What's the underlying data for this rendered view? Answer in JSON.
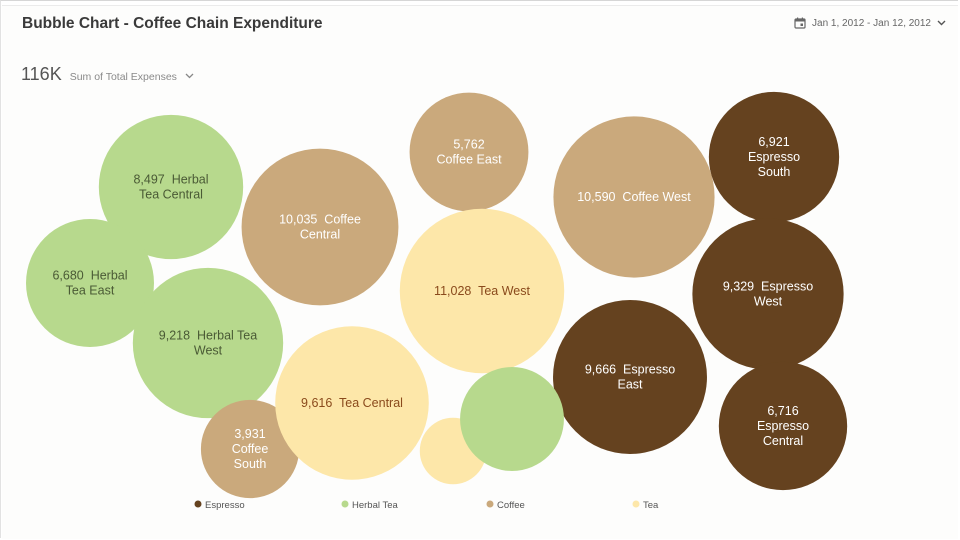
{
  "header": {
    "title": "Bubble Chart - Coffee Chain Expenditure",
    "date_range": "Jan 1, 2012 - Jan 12, 2012",
    "metric_value": "116K",
    "metric_label": "Sum of Total Expenses"
  },
  "colors": {
    "Espresso": "#65421f",
    "Herbal Tea": "#b7d98d",
    "Coffee": "#caa97c",
    "Tea": "#fde7a9"
  },
  "chart_data": {
    "type": "bubble",
    "title": "Bubble Chart - Coffee Chain Expenditure",
    "measure": "Sum of Total Expenses",
    "total": "116K",
    "legend": [
      "Espresso",
      "Herbal Tea",
      "Coffee",
      "Tea"
    ],
    "legend_position": "bottom",
    "bubbles": [
      {
        "value": 8497,
        "product": "Herbal Tea",
        "region": "Central",
        "label_lines": [
          "8,497  Herbal",
          "Tea Central"
        ]
      },
      {
        "value": 6680,
        "product": "Herbal Tea",
        "region": "East",
        "label_lines": [
          "6,680  Herbal",
          "Tea East"
        ]
      },
      {
        "value": 9218,
        "product": "Herbal Tea",
        "region": "West",
        "label_lines": [
          "9,218  Herbal Tea",
          "West"
        ]
      },
      {
        "value": 10035,
        "product": "Coffee",
        "region": "Central",
        "label_lines": [
          "10,035  Coffee",
          "Central"
        ]
      },
      {
        "value": 3931,
        "product": "Coffee",
        "region": "South",
        "label_lines": [
          "3,931",
          "Coffee",
          "South"
        ]
      },
      {
        "value": 5762,
        "product": "Coffee",
        "region": "East",
        "label_lines": [
          "5,762",
          "Coffee East"
        ]
      },
      {
        "value": 11028,
        "product": "Tea",
        "region": "West",
        "label_lines": [
          "11,028  Tea West"
        ]
      },
      {
        "value": 9616,
        "product": "Tea",
        "region": "Central",
        "label_lines": [
          "9,616  Tea Central"
        ]
      },
      {
        "value": 10590,
        "product": "Coffee",
        "region": "West",
        "label_lines": [
          "10,590  Coffee West"
        ]
      },
      {
        "value": 6921,
        "product": "Espresso",
        "region": "South",
        "label_lines": [
          "6,921",
          "Espresso",
          "South"
        ]
      },
      {
        "value": 9329,
        "product": "Espresso",
        "region": "West",
        "label_lines": [
          "9,329  Espresso",
          "West"
        ]
      },
      {
        "value": 9666,
        "product": "Espresso",
        "region": "East",
        "label_lines": [
          "9,666  Espresso",
          "East"
        ]
      },
      {
        "value": 6716,
        "product": "Espresso",
        "region": "Central",
        "label_lines": [
          "6,716",
          "Espresso",
          "Central"
        ]
      },
      {
        "value": 1800,
        "product": "Tea",
        "region": "",
        "label_lines": []
      },
      {
        "value": 4400,
        "product": "Herbal Tea",
        "region": "",
        "label_lines": []
      }
    ]
  }
}
